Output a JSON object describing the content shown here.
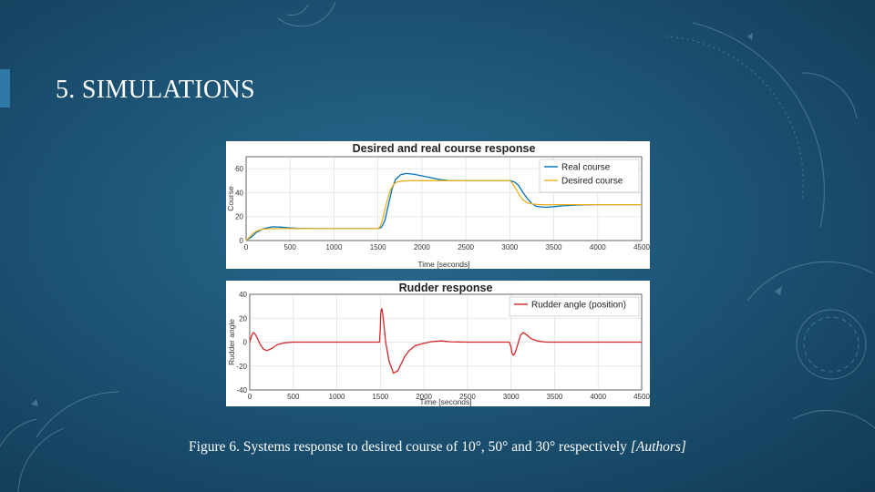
{
  "slide": {
    "title": "5. SIMULATIONS",
    "caption_main": "Figure 6. Systems response to desired course of 10°, 50° and 30° respectively ",
    "caption_cite": "[Authors]"
  },
  "colors": {
    "background": "#1d5577",
    "accent": "#2f79a6",
    "real_course": "#0072bd",
    "desired_course": "#edb120",
    "rudder": "#d62728"
  },
  "chart_data": [
    {
      "type": "line",
      "title": "Desired and real course response",
      "xlabel": "Time [seconds]",
      "ylabel": "Course",
      "xlim": [
        0,
        4500
      ],
      "ylim": [
        0,
        70
      ],
      "xticks": [
        0,
        500,
        1000,
        1500,
        2000,
        2500,
        3000,
        3500,
        4000,
        4500
      ],
      "yticks": [
        0,
        20,
        40,
        60
      ],
      "grid": true,
      "legend": "top-right",
      "series": [
        {
          "name": "Real course",
          "color": "#0072bd",
          "x": [
            0,
            60,
            120,
            200,
            300,
            400,
            500,
            600,
            800,
            1000,
            1200,
            1400,
            1500,
            1540,
            1580,
            1620,
            1660,
            1700,
            1760,
            1820,
            1900,
            2000,
            2100,
            2200,
            2300,
            2500,
            2800,
            3000,
            3050,
            3100,
            3150,
            3200,
            3250,
            3300,
            3400,
            3500,
            3600,
            3800,
            4000,
            4200,
            4500
          ],
          "y": [
            0,
            3,
            7,
            10,
            11.5,
            11.2,
            10.6,
            10.2,
            10,
            10,
            10,
            10,
            10,
            11,
            17,
            30,
            43,
            51,
            55,
            56,
            55.5,
            54,
            52.5,
            51,
            50.2,
            50,
            50,
            50,
            49,
            46,
            40,
            35,
            31,
            28.5,
            27.8,
            28.3,
            29,
            29.7,
            30,
            30,
            30
          ]
        },
        {
          "name": "Desired course",
          "color": "#edb120",
          "x": [
            0,
            40,
            80,
            120,
            160,
            200,
            260,
            320,
            400,
            600,
            1000,
            1500,
            1530,
            1560,
            1600,
            1640,
            1680,
            1720,
            1780,
            1850,
            1950,
            2100,
            2500,
            3000,
            3030,
            3070,
            3110,
            3150,
            3200,
            3260,
            3350,
            3500,
            4000,
            4500
          ],
          "y": [
            0,
            3,
            6,
            8,
            9,
            9.5,
            9.9,
            10,
            10,
            10,
            10,
            10,
            12,
            20,
            32,
            42,
            47,
            49,
            49.7,
            50,
            50,
            50,
            50,
            50,
            48,
            43,
            38,
            34,
            31.5,
            30.4,
            30,
            30,
            30,
            30
          ]
        }
      ]
    },
    {
      "type": "line",
      "title": "Rudder response",
      "xlabel": "Time [seconds]",
      "ylabel": "Rudder angle",
      "xlim": [
        0,
        4500
      ],
      "ylim": [
        -40,
        40
      ],
      "xticks": [
        0,
        500,
        1000,
        1500,
        2000,
        2500,
        3000,
        3500,
        4000,
        4500
      ],
      "yticks": [
        -40,
        -20,
        0,
        20,
        40
      ],
      "grid": true,
      "legend": "top-right",
      "series": [
        {
          "name": "Rudder angle (position)",
          "color": "#d62728",
          "x": [
            0,
            20,
            40,
            60,
            90,
            120,
            160,
            200,
            260,
            320,
            400,
            500,
            700,
            1000,
            1300,
            1490,
            1500,
            1505,
            1515,
            1525,
            1540,
            1560,
            1600,
            1650,
            1700,
            1740,
            1780,
            1830,
            1900,
            2000,
            2100,
            2200,
            2300,
            2500,
            2800,
            2980,
            3000,
            3010,
            3025,
            3040,
            3060,
            3085,
            3110,
            3140,
            3180,
            3230,
            3300,
            3400,
            3600,
            4000,
            4500
          ],
          "y": [
            0,
            5,
            8,
            7,
            3,
            -2,
            -6,
            -7,
            -5,
            -2,
            -0.5,
            0,
            0,
            0,
            0,
            0,
            12,
            25,
            28,
            25,
            15,
            0,
            -16,
            -26,
            -24,
            -18,
            -12,
            -7,
            -3,
            -1,
            0.5,
            1,
            0.3,
            0,
            0,
            0,
            -4,
            -9,
            -11,
            -10,
            -6,
            0,
            6,
            8,
            6,
            3,
            1,
            0,
            0,
            0,
            0
          ]
        }
      ]
    }
  ]
}
